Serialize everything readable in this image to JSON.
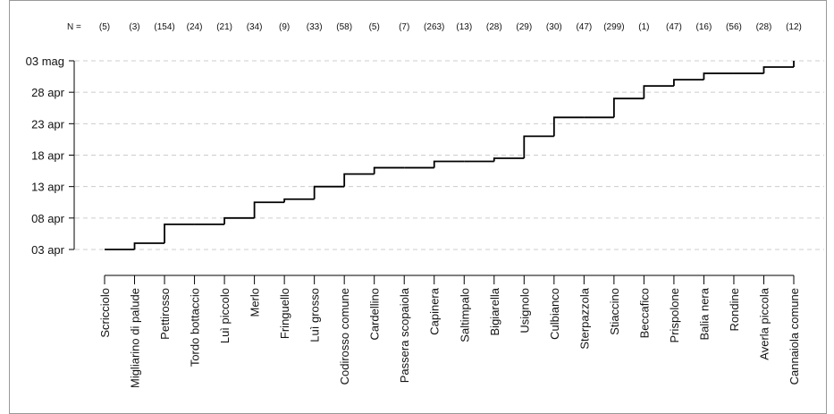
{
  "chart_data": {
    "type": "step",
    "n_label": "N =",
    "categories": [
      "Scricciolo",
      "Migliarino di palude",
      "Pettirosso",
      "Tordo bottaccio",
      "Luì piccolo",
      "Merlo",
      "Fringuello",
      "Luì grosso",
      "Codirosso comune",
      "Cardellino",
      "Passera scopaiola",
      "Capinera",
      "Saltimpalo",
      "Bigiarella",
      "Usignolo",
      "Culbianco",
      "Sterpazzola",
      "Stiaccino",
      "Beccafico",
      "Prispolone",
      "Balia nera",
      "Rondine",
      "Averla piccola",
      "Cannaiola comune"
    ],
    "n_values": [
      5,
      3,
      154,
      24,
      21,
      34,
      9,
      33,
      58,
      5,
      7,
      263,
      13,
      28,
      29,
      30,
      47,
      299,
      1,
      47,
      16,
      56,
      28,
      12
    ],
    "n_value_labels": [
      "(5)",
      "(3)",
      "(154)",
      "(24)",
      "(21)",
      "(34)",
      "(9)",
      "(33)",
      "(58)",
      "(5)",
      "(7)",
      "(263)",
      "(13)",
      "(28)",
      "(29)",
      "(30)",
      "(47)",
      "(299)",
      "(1)",
      "(47)",
      "(16)",
      "(56)",
      "(28)",
      "(12)"
    ],
    "values": [
      3,
      4,
      7,
      7,
      8,
      10.5,
      11,
      13,
      15,
      16,
      16,
      17,
      17,
      17.5,
      21,
      24,
      24,
      27,
      29,
      30,
      31,
      31,
      32,
      33
    ],
    "color": "#000000",
    "ylim": [
      3,
      33
    ],
    "yticks": [
      {
        "value": 3,
        "label": "03 apr"
      },
      {
        "value": 8,
        "label": "08 apr"
      },
      {
        "value": 13,
        "label": "13 apr"
      },
      {
        "value": 18,
        "label": "18 apr"
      },
      {
        "value": 23,
        "label": "23 apr"
      },
      {
        "value": 28,
        "label": "28 apr"
      },
      {
        "value": 33,
        "label": "03 mag"
      }
    ],
    "grid": true
  }
}
